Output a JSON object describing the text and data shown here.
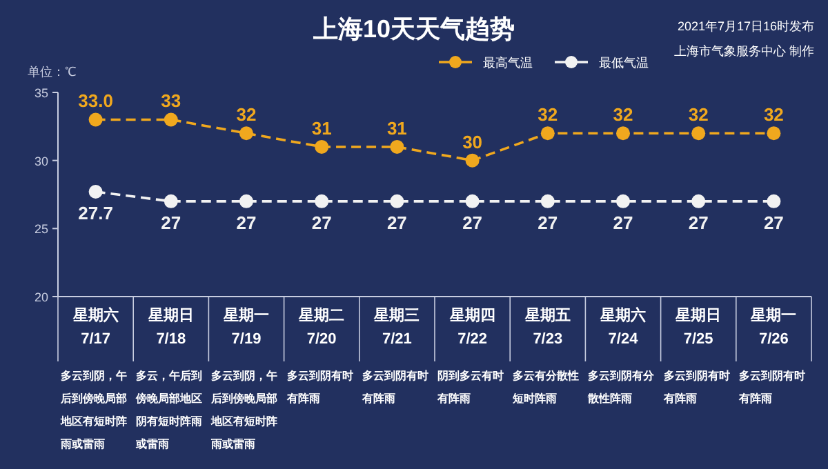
{
  "chart_data": {
    "type": "line",
    "title": "上海10天天气趋势",
    "ylabel": "单位：℃",
    "categories": [
      "星期六 7/17",
      "星期日 7/18",
      "星期一 7/19",
      "星期二 7/20",
      "星期三 7/21",
      "星期四 7/22",
      "星期五 7/23",
      "星期六 7/24",
      "星期日 7/25",
      "星期一 7/26"
    ],
    "series": [
      {
        "name": "最高气温",
        "color": "#f0a81e",
        "values": [
          33,
          33,
          32,
          31,
          31,
          30,
          32,
          32,
          32,
          32
        ],
        "value_labels": [
          "33.0",
          "33",
          "32",
          "31",
          "31",
          "30",
          "32",
          "32",
          "32",
          "32"
        ]
      },
      {
        "name": "最低气温",
        "color": "#f2f2f2",
        "values": [
          27.7,
          27,
          27,
          27,
          27,
          27,
          27,
          27,
          27,
          27
        ],
        "value_labels": [
          "27.7",
          "27",
          "27",
          "27",
          "27",
          "27",
          "27",
          "27",
          "27",
          "27"
        ]
      }
    ],
    "ylim": [
      20,
      35
    ],
    "yticks": [
      20,
      25,
      30,
      35
    ],
    "grid": false,
    "legend": "top",
    "marker": "circle",
    "line_style": "dashed",
    "annotations": [
      "2021年7月17日16时发布",
      "上海市气象服务中心 制作",
      "多云到阴，午后到傍晚局部地区有短时阵雨或雷雨",
      "多云，午后到傍晚局部地区阴有短时阵雨或雷雨",
      "多云到阴，午后到傍晚局部地区有短时阵雨或雷雨",
      "多云到阴有时有阵雨",
      "多云到阴有时有阵雨",
      "阴到多云有时有阵雨",
      "多云有分散性短时阵雨",
      "多云到阴有分散性阵雨",
      "多云到阴有时有阵雨",
      "多云到阴有时有阵雨"
    ]
  }
}
